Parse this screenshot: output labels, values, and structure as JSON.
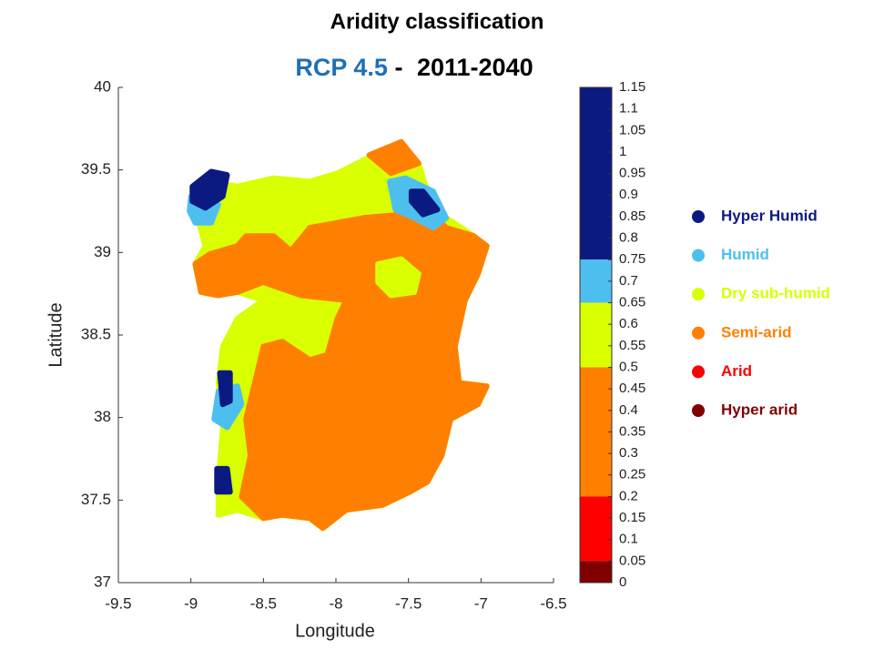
{
  "chart_data": {
    "type": "scatter",
    "title": "Aridity classification",
    "subtitle": {
      "scenario": "RCP 4.5",
      "scenario_color": "#1f6fb8",
      "separator": "-",
      "period": "2011-2040"
    },
    "xlabel": "Longitude",
    "ylabel": "Latitude",
    "xlim": [
      -9.5,
      -6.5
    ],
    "xticks": [
      -9.5,
      -9,
      -8.5,
      -8,
      -7.5,
      -7,
      -6.5
    ],
    "ylim": [
      37,
      40
    ],
    "yticks": [
      37,
      37.5,
      38,
      38.5,
      39,
      39.5,
      40
    ],
    "clim": [
      0,
      1.15
    ],
    "cticks": [
      0,
      0.05,
      0.1,
      0.15,
      0.2,
      0.25,
      0.3,
      0.35,
      0.4,
      0.45,
      0.5,
      0.55,
      0.6,
      0.65,
      0.7,
      0.75,
      0.8,
      0.85,
      0.9,
      0.95,
      1,
      1.05,
      1.1,
      1.15
    ],
    "classes": [
      {
        "name": "Hyper Humid",
        "color": "#0b1a80",
        "range": [
          0.75,
          1.15
        ]
      },
      {
        "name": "Humid",
        "color": "#4dbfef",
        "range": [
          0.65,
          0.75
        ]
      },
      {
        "name": "Dry sub-humid",
        "color": "#d9ff00",
        "range": [
          0.5,
          0.65
        ]
      },
      {
        "name": "Semi-arid",
        "color": "#ff8000",
        "range": [
          0.2,
          0.5
        ]
      },
      {
        "name": "Arid",
        "color": "#ff0000",
        "range": [
          0.05,
          0.2
        ]
      },
      {
        "name": "Hyper arid",
        "color": "#800000",
        "range": [
          0,
          0.05
        ]
      }
    ],
    "regions": [
      {
        "class": 2,
        "lon": [
          -8.97,
          -8.87,
          -8.68,
          -8.43,
          -8.18,
          -7.99,
          -7.74,
          -7.55,
          -7.43,
          -7.37,
          -7.24,
          -7.05,
          -6.96,
          -7.02,
          -7.11,
          -7.18,
          -7.15,
          -6.96,
          -7.02,
          -7.21,
          -7.27,
          -7.37,
          -7.49,
          -7.68,
          -7.93,
          -8.09,
          -8.18,
          -8.37,
          -8.5,
          -8.68,
          -8.81,
          -8.81,
          -8.78,
          -8.81,
          -8.78,
          -8.68,
          -8.5,
          -8.68,
          -8.81,
          -8.93,
          -8.97,
          -8.9,
          -8.97
        ],
        "lat": [
          39.26,
          39.43,
          39.4,
          39.45,
          39.43,
          39.48,
          39.59,
          39.66,
          39.54,
          39.37,
          39.21,
          39.1,
          39.04,
          38.87,
          38.71,
          38.43,
          38.21,
          38.19,
          38.08,
          37.99,
          37.77,
          37.61,
          37.55,
          37.47,
          37.44,
          37.33,
          37.39,
          37.41,
          37.39,
          37.44,
          37.41,
          37.61,
          37.94,
          38.21,
          38.43,
          38.6,
          38.71,
          38.76,
          38.74,
          38.76,
          38.93,
          39.04,
          39.26
        ]
      },
      {
        "class": 3,
        "lon": [
          -8.62,
          -8.43,
          -8.31,
          -8.18,
          -7.99,
          -7.81,
          -7.55,
          -7.37,
          -7.24,
          -7.05,
          -6.96,
          -7.02,
          -7.11,
          -7.18,
          -7.15,
          -6.96,
          -7.02,
          -7.21,
          -7.27,
          -7.37,
          -7.49,
          -7.68,
          -7.93,
          -8.09,
          -8.18,
          -8.37,
          -8.5,
          -8.65,
          -8.59,
          -8.62,
          -8.56,
          -8.5,
          -8.37,
          -8.18,
          -8.06,
          -7.99,
          -7.93,
          -8.24,
          -8.5,
          -8.68,
          -8.81,
          -8.93,
          -8.97,
          -8.87,
          -8.68
        ],
        "lat": [
          39.1,
          39.1,
          39.01,
          39.15,
          39.18,
          39.21,
          39.23,
          39.26,
          39.15,
          39.1,
          39.04,
          38.87,
          38.71,
          38.43,
          38.21,
          38.19,
          38.08,
          37.99,
          37.77,
          37.61,
          37.55,
          37.47,
          37.44,
          37.33,
          37.39,
          37.41,
          37.39,
          37.52,
          37.77,
          37.99,
          38.21,
          38.43,
          38.46,
          38.35,
          38.38,
          38.6,
          38.71,
          38.74,
          38.82,
          38.76,
          38.74,
          38.76,
          38.93,
          38.99,
          39.04
        ]
      },
      {
        "class": 3,
        "lon": [
          -7.77,
          -7.55,
          -7.43,
          -7.62
        ],
        "lat": [
          39.59,
          39.67,
          39.54,
          39.48
        ]
      },
      {
        "class": 2,
        "lon": [
          -7.71,
          -7.55,
          -7.43,
          -7.46,
          -7.62,
          -7.71
        ],
        "lat": [
          38.93,
          38.96,
          38.87,
          38.76,
          38.74,
          38.82
        ]
      },
      {
        "class": 1,
        "lon": [
          -9.01,
          -9.0,
          -8.9,
          -8.81,
          -8.86,
          -8.97
        ],
        "lat": [
          39.25,
          39.34,
          39.27,
          39.29,
          39.18,
          39.18
        ]
      },
      {
        "class": 0,
        "lon": [
          -8.99,
          -8.86,
          -8.75,
          -8.78,
          -8.9,
          -8.99
        ],
        "lat": [
          39.4,
          39.49,
          39.47,
          39.34,
          39.27,
          39.31
        ]
      },
      {
        "class": 1,
        "lon": [
          -7.63,
          -7.52,
          -7.33,
          -7.24,
          -7.33,
          -7.46,
          -7.59
        ],
        "lat": [
          39.43,
          39.45,
          39.37,
          39.21,
          39.15,
          39.21,
          39.26
        ]
      },
      {
        "class": 0,
        "lon": [
          -7.48,
          -7.4,
          -7.3,
          -7.4,
          -7.48
        ],
        "lat": [
          39.37,
          39.37,
          39.26,
          39.23,
          39.31
        ]
      },
      {
        "class": 1,
        "lon": [
          -8.81,
          -8.68,
          -8.65,
          -8.75,
          -8.84
        ],
        "lat": [
          38.16,
          38.19,
          38.08,
          37.94,
          37.99
        ]
      },
      {
        "class": 0,
        "lon": [
          -8.8,
          -8.73,
          -8.73,
          -8.78
        ],
        "lat": [
          38.27,
          38.27,
          38.1,
          38.08
        ]
      },
      {
        "class": 0,
        "lon": [
          -8.82,
          -8.75,
          -8.73,
          -8.82
        ],
        "lat": [
          37.69,
          37.69,
          37.55,
          37.55
        ]
      }
    ]
  }
}
